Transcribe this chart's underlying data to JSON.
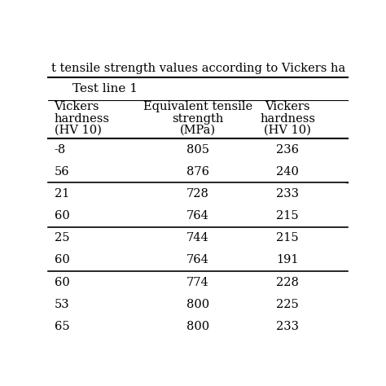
{
  "title": "t tensile strength values according to Vickers ha",
  "section_header": "Test line 1",
  "col1_header": [
    "Vickers",
    "hardness",
    "(HV 10)"
  ],
  "col2_header": [
    "Equivalent tensile",
    "strength",
    "(MPa)"
  ],
  "col3_header": [
    "Vickers",
    "hardness",
    "(HV 10)"
  ],
  "col1_partial": [
    "-8",
    "56",
    "21",
    "60",
    "25",
    "60",
    "60",
    "53",
    "65"
  ],
  "col2_values": [
    "805",
    "876",
    "728",
    "764",
    "744",
    "764",
    "774",
    "800",
    "800"
  ],
  "col3_values": [
    "236",
    "240",
    "233",
    "215",
    "215",
    "191",
    "228",
    "225",
    "233"
  ],
  "group_dividers_after": [
    1,
    3,
    5
  ],
  "background_color": "#ffffff",
  "text_color": "#000000"
}
